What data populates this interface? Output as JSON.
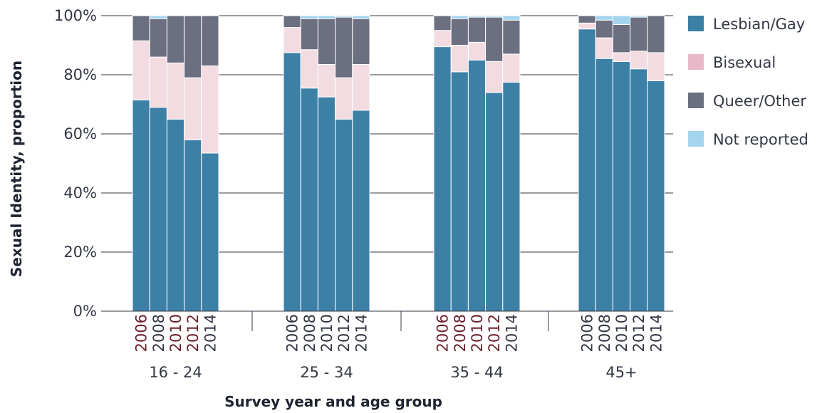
{
  "chart_data": {
    "type": "bar",
    "stacked": true,
    "xlabel": "Survey year and age group",
    "ylabel": "Sexual Identity, proportion",
    "ylim": [
      0,
      100
    ],
    "y_ticks": [
      "0%",
      "20%",
      "40%",
      "60%",
      "80%",
      "100%"
    ],
    "grid": true,
    "legend_position": "right",
    "groups": [
      {
        "label": "16 - 24",
        "years": [
          "2006",
          "2008",
          "2010",
          "2012",
          "2014"
        ],
        "lesbian_gay": [
          71.5,
          69,
          65,
          58,
          53.5
        ],
        "bisexual": [
          20,
          17,
          19,
          21,
          29.5
        ],
        "queer_other": [
          8.5,
          13,
          16,
          21,
          17
        ],
        "not_reported": [
          0,
          1,
          0,
          0,
          0
        ]
      },
      {
        "label": "25 - 34",
        "years": [
          "2006",
          "2008",
          "2010",
          "2012",
          "2014"
        ],
        "lesbian_gay": [
          87.5,
          75.5,
          72.5,
          65,
          68
        ],
        "bisexual": [
          8.5,
          13,
          11,
          14,
          15.5
        ],
        "queer_other": [
          4,
          10.5,
          15.5,
          20.5,
          15.5
        ],
        "not_reported": [
          0,
          1,
          1,
          0.5,
          1
        ]
      },
      {
        "label": "35 - 44",
        "years": [
          "2006",
          "2008",
          "2010",
          "2012",
          "2014"
        ],
        "lesbian_gay": [
          89.5,
          81,
          85,
          74,
          77.5
        ],
        "bisexual": [
          5.5,
          9,
          6,
          10.5,
          9.5
        ],
        "queer_other": [
          5,
          9,
          8.5,
          15,
          11.5
        ],
        "not_reported": [
          0,
          1,
          0.5,
          0.5,
          1.5
        ]
      },
      {
        "label": "45+",
        "years": [
          "2006",
          "2008",
          "2010",
          "2012",
          "2014"
        ],
        "lesbian_gay": [
          95.5,
          85.5,
          84.5,
          82,
          78
        ],
        "bisexual": [
          2,
          7,
          3,
          6,
          9.5
        ],
        "queer_other": [
          2.5,
          6,
          9.5,
          11.5,
          12.5
        ],
        "not_reported": [
          0,
          1.5,
          3,
          0.5,
          0
        ]
      }
    ],
    "series": [
      {
        "key": "lesbian_gay",
        "name": "Lesbian/Gay",
        "color": "#3d80a6"
      },
      {
        "key": "bisexual",
        "name": "Bisexual",
        "color": "#f2dce2"
      },
      {
        "key": "queer_other",
        "name": "Queer/Other",
        "color": "#6b6f80"
      },
      {
        "key": "not_reported",
        "name": "Not reported",
        "color": "#a3d5ef"
      }
    ],
    "legend_colors": {
      "Lesbian/Gay": "#3d80a6",
      "Bisexual": "#e7b9c8",
      "Queer/Other": "#6b6f80",
      "Not reported": "#a3d5ef"
    },
    "year_label_colors": {
      "highlight": "#6b1f2b",
      "normal": "#333844"
    },
    "highlighted_years": {
      "16 - 24": [
        "2006",
        "2010",
        "2012"
      ],
      "25 - 34": [],
      "35 - 44": [
        "2006",
        "2008",
        "2010",
        "2012"
      ],
      "45+": []
    }
  }
}
